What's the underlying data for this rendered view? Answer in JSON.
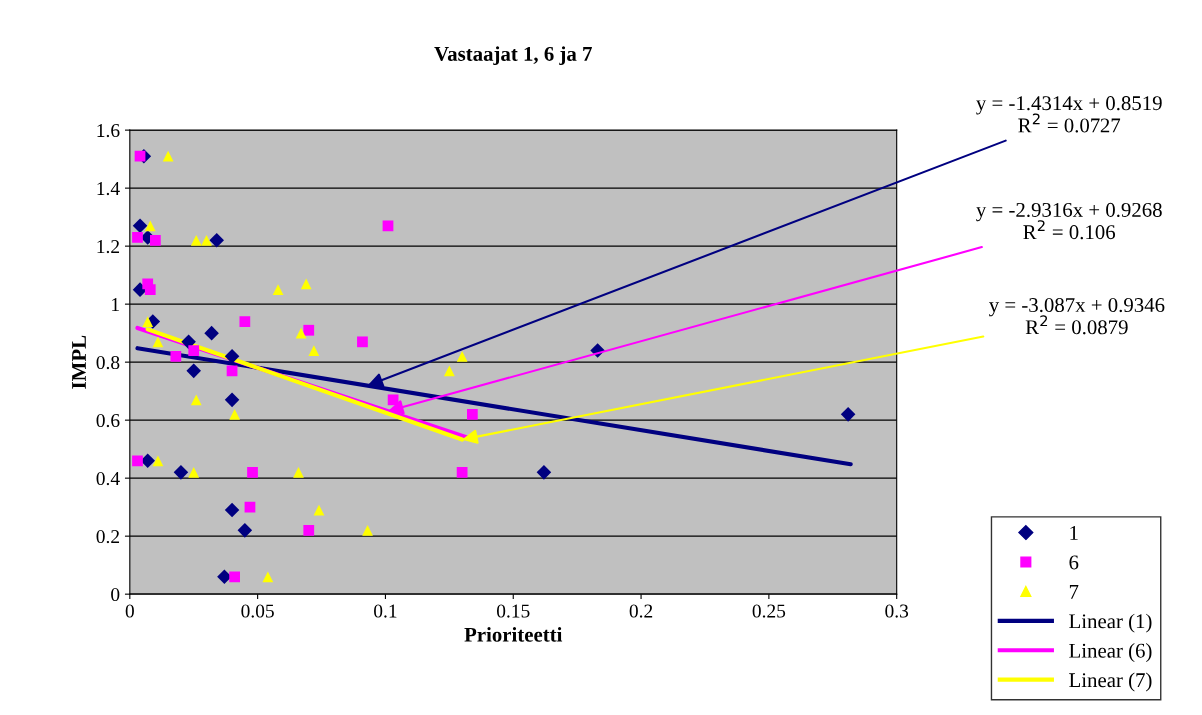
{
  "chart_data": {
    "type": "scatter",
    "title": "Vastaajat 1, 6 ja 7",
    "xlabel": "Prioriteetti",
    "ylabel": "IMPL",
    "xlim": [
      0,
      0.3
    ],
    "xticks": [
      0,
      0.05,
      0.1,
      0.15,
      0.2,
      0.25,
      0.3
    ],
    "ylim": [
      0,
      1.6
    ],
    "yticks": [
      0,
      0.2,
      0.4,
      0.6,
      0.8,
      1,
      1.2,
      1.4,
      1.6
    ],
    "grid": "y",
    "legend": "right",
    "series": [
      {
        "name": "1",
        "color": "#000080",
        "marker": "diamond",
        "x": [
          0.0055,
          0.004,
          0.007,
          0.034,
          0.004,
          0.009,
          0.032,
          0.023,
          0.025,
          0.04,
          0.04,
          0.007,
          0.02,
          0.04,
          0.045,
          0.037,
          0.162,
          0.183,
          0.281
        ],
        "values": [
          1.51,
          1.27,
          1.23,
          1.22,
          1.05,
          0.94,
          0.9,
          0.87,
          0.77,
          0.82,
          0.67,
          0.46,
          0.42,
          0.29,
          0.22,
          0.06,
          0.42,
          0.84,
          0.62
        ]
      },
      {
        "name": "6",
        "color": "#ff00ff",
        "marker": "square",
        "x": [
          0.004,
          0.003,
          0.01,
          0.007,
          0.008,
          0.018,
          0.025,
          0.04,
          0.045,
          0.07,
          0.091,
          0.101,
          0.103,
          0.134,
          0.13,
          0.07,
          0.048,
          0.047,
          0.041,
          0.003
        ],
        "values": [
          1.51,
          1.23,
          1.22,
          1.07,
          1.05,
          0.82,
          0.84,
          0.77,
          0.94,
          0.91,
          0.87,
          1.27,
          0.67,
          0.62,
          0.42,
          0.22,
          0.42,
          0.3,
          0.06,
          0.46
        ]
      },
      {
        "name": "7",
        "color": "#ffff00",
        "marker": "triangle",
        "x": [
          0.015,
          0.008,
          0.026,
          0.03,
          0.058,
          0.069,
          0.007,
          0.011,
          0.067,
          0.072,
          0.026,
          0.041,
          0.011,
          0.025,
          0.066,
          0.054,
          0.074,
          0.093,
          0.125,
          0.13
        ],
        "values": [
          1.51,
          1.27,
          1.22,
          1.22,
          1.05,
          1.07,
          0.94,
          0.87,
          0.9,
          0.84,
          0.67,
          0.62,
          0.46,
          0.42,
          0.42,
          0.06,
          0.29,
          0.22,
          0.77,
          0.82
        ]
      },
      {
        "name": "Linear (1)",
        "type": "line",
        "color": "#000080",
        "line_style": "solid",
        "x": [
          0.003,
          0.282
        ],
        "values": [
          0.848,
          0.448
        ]
      },
      {
        "name": "Linear (6)",
        "type": "line",
        "color": "#ff00ff",
        "line_style": "solid",
        "x": [
          0.003,
          0.134
        ],
        "values": [
          0.918,
          0.534
        ]
      },
      {
        "name": "Linear (7)",
        "type": "line",
        "color": "#ffff00",
        "line_style": "solid",
        "x": [
          0.007,
          0.13
        ],
        "values": [
          0.913,
          0.533
        ]
      }
    ],
    "annotations": [
      {
        "text": "y = -1.4314x + 0.8519\nR$^{2}$ = 0.0727",
        "x": 0.093,
        "y": 0.719
      },
      {
        "text": "y = -2.9316x + 0.9268\nR$^{2}$ = 0.106",
        "x": 0.101,
        "y": 0.631
      },
      {
        "text": "y = -3.087x + 0.9346\nR$^{2}$ = 0.0879",
        "x": 0.13,
        "y": 0.533
      }
    ]
  }
}
